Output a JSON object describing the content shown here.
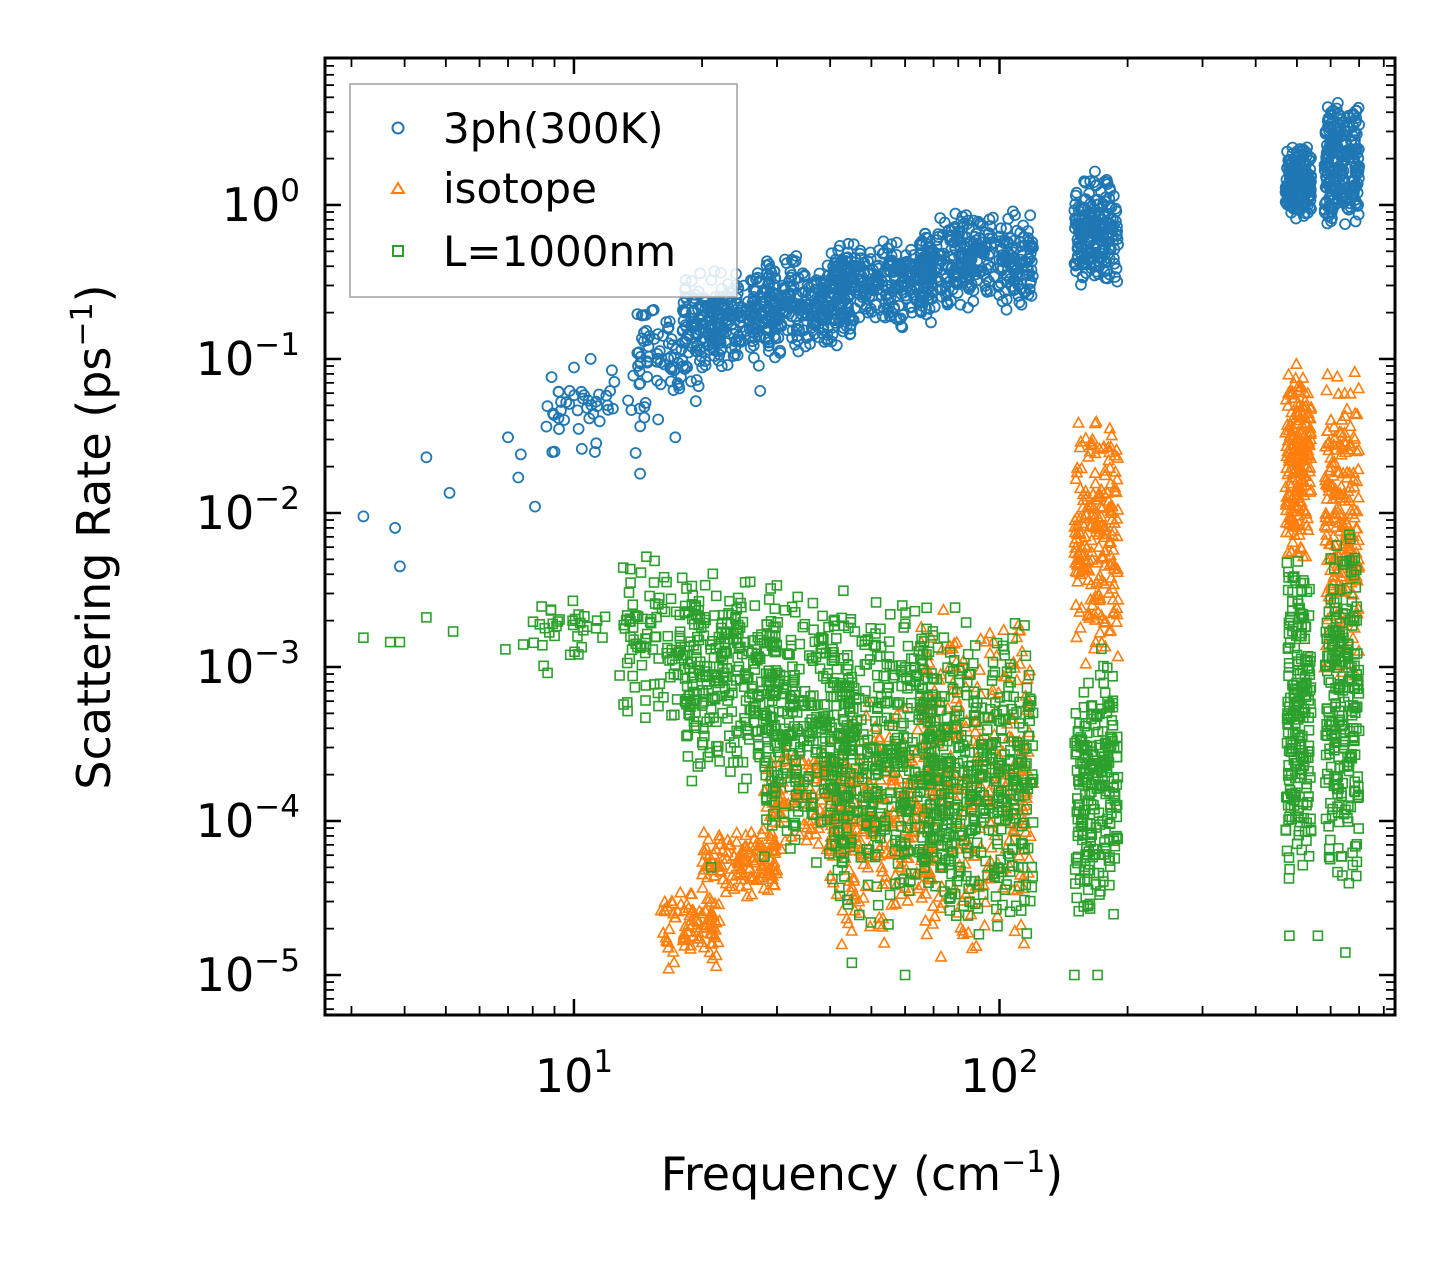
{
  "chart_data": {
    "type": "scatter",
    "xscale": "log",
    "yscale": "log",
    "xlabel": "Frequency (cm",
    "xlabel_sup": "−1",
    "xlabel_tail": ")",
    "ylabel": "Scattering Rate (ps",
    "ylabel_sup": "−1",
    "ylabel_tail": ")",
    "xlim": [
      2.6,
      850
    ],
    "ylim": [
      5.5e-06,
      9
    ],
    "x_ticks": [
      {
        "value": 10,
        "base": "10",
        "exp": "1"
      },
      {
        "value": 100,
        "base": "10",
        "exp": "2"
      }
    ],
    "y_ticks": [
      {
        "value": 1,
        "base": "10",
        "exp": "0"
      },
      {
        "value": 0.1,
        "base": "10",
        "exp": "−1"
      },
      {
        "value": 0.01,
        "base": "10",
        "exp": "−2"
      },
      {
        "value": 0.001,
        "base": "10",
        "exp": "−3"
      },
      {
        "value": 0.0001,
        "base": "10",
        "exp": "−4"
      },
      {
        "value": 1e-05,
        "base": "10",
        "exp": "−5"
      }
    ],
    "legend_position": "upper-left",
    "series": [
      {
        "name": "3ph(300K)",
        "marker": "circle",
        "color": "#1f77b4",
        "anchor_points": [
          [
            3.2,
            0.0095
          ],
          [
            3.8,
            0.008
          ],
          [
            3.9,
            0.0045
          ],
          [
            4.5,
            0.023
          ],
          [
            5.1,
            0.0135
          ],
          [
            7,
            0.031
          ],
          [
            7.4,
            0.017
          ],
          [
            7.5,
            0.024
          ],
          [
            8.1,
            0.011
          ],
          [
            9,
            0.025
          ],
          [
            10,
            0.088
          ],
          [
            12,
            0.05
          ],
          [
            14.3,
            0.018
          ],
          [
            17.3,
            0.031
          ],
          [
            27.4,
            0.062
          ]
        ],
        "clusters": [
          {
            "x": [
              8.5,
              16
            ],
            "y_lo": 0.02,
            "y_hi": 0.12,
            "n": 55
          },
          {
            "x": [
              14,
              20
            ],
            "y_lo": 0.05,
            "y_hi": 0.25,
            "n": 80
          },
          {
            "x": [
              18,
              30
            ],
            "y_lo": 0.08,
            "y_hi": 0.4,
            "n": 260
          },
          {
            "x": [
              28,
              45
            ],
            "y_lo": 0.1,
            "y_hi": 0.5,
            "n": 260
          },
          {
            "x": [
              40,
              70
            ],
            "y_lo": 0.15,
            "y_hi": 0.65,
            "n": 300
          },
          {
            "x": [
              65,
              120
            ],
            "y_lo": 0.2,
            "y_hi": 0.95,
            "n": 360
          },
          {
            "x": [
              150,
              190
            ],
            "y_lo": 0.25,
            "y_hi": 1.8,
            "n": 210
          },
          {
            "x": [
              470,
              540
            ],
            "y_lo": 0.75,
            "y_hi": 2.6,
            "n": 180
          },
          {
            "x": [
              580,
              700
            ],
            "y_lo": 0.65,
            "y_hi": 5.2,
            "n": 240
          }
        ]
      },
      {
        "name": "isotope",
        "marker": "triangle",
        "color": "#ff7f0e",
        "clusters": [
          {
            "x": [
              16,
              22
            ],
            "y_lo": 1e-05,
            "y_hi": 4e-05,
            "n": 90
          },
          {
            "x": [
              20,
              30
            ],
            "y_lo": 3e-05,
            "y_hi": 0.0001,
            "n": 130
          },
          {
            "x": [
              28,
              45
            ],
            "y_lo": 6e-05,
            "y_hi": 0.0003,
            "n": 150
          },
          {
            "x": [
              40,
              70
            ],
            "y_lo": 1.5e-05,
            "y_hi": 0.0006,
            "n": 260
          },
          {
            "x": [
              65,
              120
            ],
            "y_lo": 1.2e-05,
            "y_hi": 0.003,
            "n": 300
          },
          {
            "x": [
              150,
              190
            ],
            "y_lo": 0.001,
            "y_hi": 0.05,
            "n": 220
          },
          {
            "x": [
              470,
              540
            ],
            "y_lo": 0.004,
            "y_hi": 0.11,
            "n": 200
          },
          {
            "x": [
              580,
              700
            ],
            "y_lo": 0.0006,
            "y_hi": 0.11,
            "n": 220
          }
        ]
      },
      {
        "name": "L=1000nm",
        "marker": "square",
        "color": "#2ca02c",
        "anchor_points": [
          [
            3.2,
            0.00155
          ],
          [
            3.7,
            0.00145
          ],
          [
            3.9,
            0.00145
          ],
          [
            4.5,
            0.0021
          ],
          [
            5.2,
            0.0017
          ],
          [
            6.9,
            0.0013
          ],
          [
            7.6,
            0.0014
          ],
          [
            9.8,
            0.0012
          ],
          [
            12.8,
            0.00088
          ],
          [
            14.8,
            0.0052
          ],
          [
            21,
            5e-05
          ],
          [
            45,
            1.2e-05
          ],
          [
            60,
            1e-05
          ],
          [
            150,
            1e-05
          ],
          [
            170,
            1e-05
          ],
          [
            480,
            1.8e-05
          ],
          [
            560,
            1.8e-05
          ],
          [
            650,
            1.4e-05
          ]
        ],
        "clusters": [
          {
            "x": [
              8,
              14
            ],
            "y_lo": 0.0008,
            "y_hi": 0.004,
            "n": 40
          },
          {
            "x": [
              13,
              20
            ],
            "y_lo": 0.0004,
            "y_hi": 0.005,
            "n": 110
          },
          {
            "x": [
              18,
              30
            ],
            "y_lo": 0.00015,
            "y_hi": 0.0045,
            "n": 260
          },
          {
            "x": [
              28,
              45
            ],
            "y_lo": 5e-05,
            "y_hi": 0.0035,
            "n": 300
          },
          {
            "x": [
              40,
              70
            ],
            "y_lo": 2e-05,
            "y_hi": 0.003,
            "n": 380
          },
          {
            "x": [
              65,
              120
            ],
            "y_lo": 1.5e-05,
            "y_hi": 0.0025,
            "n": 460
          },
          {
            "x": [
              150,
              190
            ],
            "y_lo": 2e-05,
            "y_hi": 0.0015,
            "n": 230
          },
          {
            "x": [
              470,
              540
            ],
            "y_lo": 3e-05,
            "y_hi": 0.008,
            "n": 210
          },
          {
            "x": [
              580,
              700
            ],
            "y_lo": 3e-05,
            "y_hi": 0.01,
            "n": 230
          }
        ]
      }
    ]
  }
}
